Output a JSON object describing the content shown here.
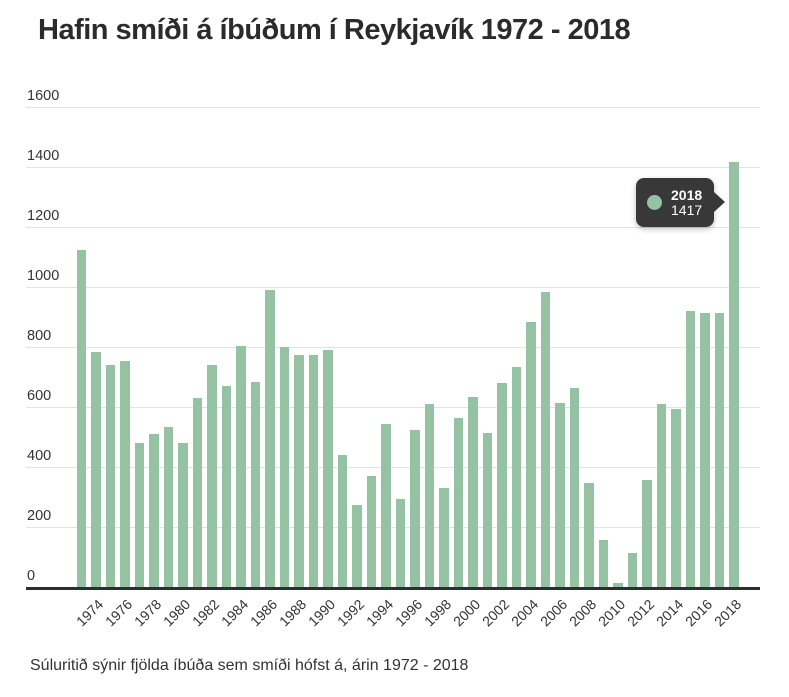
{
  "title": "Hafin smíði á íbúðum í Reykjavík 1972 - 2018",
  "subtitle": "Súluritið sýnir fjölda íbúða sem smíði hófst á, árin 1972 - 2018",
  "tooltip": {
    "year": "2018",
    "value": "1417"
  },
  "colors": {
    "bar": "#94c2a3",
    "tooltip_bg": "#383838",
    "tooltip_text": "#ffffff",
    "grid": "#e2e2e2",
    "axis_line": "#2e2e2e",
    "text": "#333333",
    "title_text": "#2b2b2b",
    "background": "#ffffff"
  },
  "chart_data": {
    "type": "bar",
    "title": "Hafin smíði á íbúðum í Reykjavík 1972 - 2018",
    "caption": "Súluritið sýnir fjölda íbúða sem smíði hófst á, árin 1972 - 2018",
    "xlabel": "",
    "ylabel": "",
    "ylim": [
      0,
      1600
    ],
    "yticks": [
      0,
      200,
      400,
      600,
      800,
      1000,
      1200,
      1400,
      1600
    ],
    "grid": "horizontal",
    "legend": "none",
    "x": [
      1972,
      1973,
      1974,
      1975,
      1976,
      1977,
      1978,
      1979,
      1980,
      1981,
      1982,
      1983,
      1984,
      1985,
      1986,
      1987,
      1988,
      1989,
      1990,
      1991,
      1992,
      1993,
      1994,
      1995,
      1996,
      1997,
      1998,
      1999,
      2000,
      2001,
      2002,
      2003,
      2004,
      2005,
      2006,
      2007,
      2008,
      2009,
      2010,
      2011,
      2012,
      2013,
      2014,
      2015,
      2016,
      2017,
      2018
    ],
    "values": [
      0,
      1125,
      785,
      740,
      755,
      480,
      510,
      535,
      480,
      630,
      740,
      670,
      805,
      685,
      990,
      800,
      775,
      775,
      790,
      440,
      275,
      370,
      545,
      295,
      525,
      610,
      330,
      565,
      635,
      515,
      680,
      735,
      885,
      985,
      615,
      665,
      348,
      158,
      15,
      115,
      358,
      610,
      593,
      920,
      915,
      915,
      1417
    ],
    "x_tick_labels": [
      "1974",
      "1976",
      "1978",
      "1980",
      "1982",
      "1984",
      "1986",
      "1988",
      "1990",
      "1992",
      "1994",
      "1996",
      "1998",
      "2000",
      "2002",
      "2004",
      "2006",
      "2008",
      "2010",
      "2012",
      "2014",
      "2016",
      "2018"
    ],
    "annotation": {
      "type": "tooltip",
      "year": "2018",
      "value": 1417
    }
  }
}
